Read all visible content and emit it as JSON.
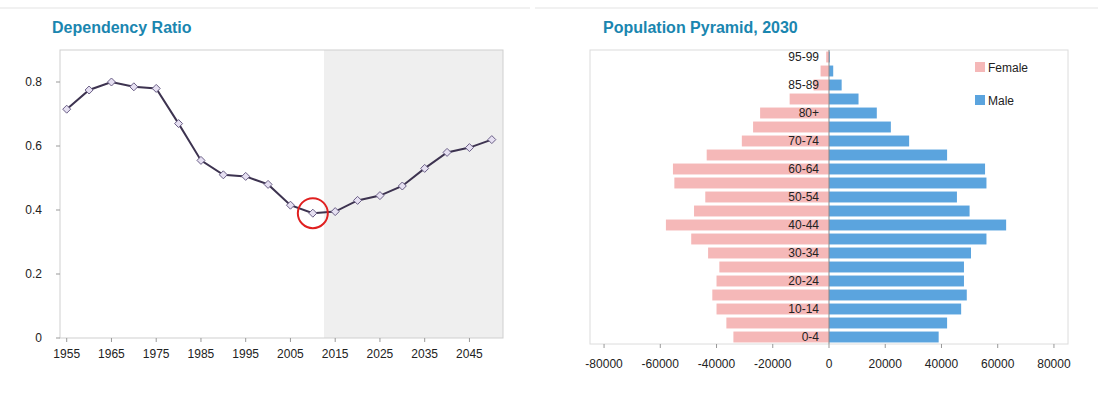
{
  "chart_data": [
    {
      "type": "line",
      "title": "Dependency Ratio",
      "x": [
        1955,
        1960,
        1965,
        1970,
        1975,
        1980,
        1985,
        1990,
        1995,
        2000,
        2005,
        2010,
        2015,
        2020,
        2025,
        2030,
        2035,
        2040,
        2045,
        2050
      ],
      "values": [
        0.715,
        0.775,
        0.8,
        0.785,
        0.78,
        0.67,
        0.555,
        0.51,
        0.505,
        0.48,
        0.415,
        0.39,
        0.395,
        0.43,
        0.445,
        0.475,
        0.53,
        0.58,
        0.595,
        0.62
      ],
      "xlim": [
        1953.5,
        2052.5
      ],
      "ylim": [
        0,
        0.9
      ],
      "xticks": [
        1955,
        1965,
        1975,
        1985,
        1995,
        2005,
        2015,
        2025,
        2035,
        2045
      ],
      "yticks": [
        0,
        0.2,
        0.4,
        0.6,
        0.8
      ],
      "color": "#3d3350",
      "marker": "diamond",
      "grid": false,
      "shaded_from": 2012.5,
      "highlight": 2010
    },
    {
      "type": "bar",
      "orientation": "horizontal",
      "title": "Population Pyramid, 2030",
      "categories": [
        "0-4",
        null,
        "10-14",
        null,
        "20-24",
        null,
        "30-34",
        null,
        "40-44",
        null,
        "50-54",
        null,
        "60-64",
        null,
        "70-74",
        null,
        "80+",
        null,
        "85-89",
        null,
        "95-99"
      ],
      "series": [
        {
          "name": "Female",
          "color": "#f5b8b8",
          "values": [
            -34000,
            -36500,
            -40000,
            -41500,
            -40000,
            -39000,
            -43000,
            -49000,
            -58000,
            -48000,
            -44000,
            -55000,
            -55500,
            -43500,
            -31000,
            -27000,
            -24500,
            -14000,
            -5500,
            -3000,
            -1000
          ]
        },
        {
          "name": "Male",
          "color": "#5ba4de",
          "values": [
            39000,
            42000,
            47000,
            49000,
            48000,
            48000,
            50500,
            56000,
            63000,
            50000,
            45500,
            56000,
            55500,
            42000,
            28500,
            22000,
            17000,
            10500,
            4500,
            1500,
            300
          ]
        }
      ],
      "xlim": [
        -85000,
        85000
      ],
      "xticks": [
        -80000,
        -60000,
        -40000,
        -20000,
        0,
        20000,
        40000,
        60000,
        80000
      ],
      "legend": "upper right",
      "grid": false
    }
  ]
}
